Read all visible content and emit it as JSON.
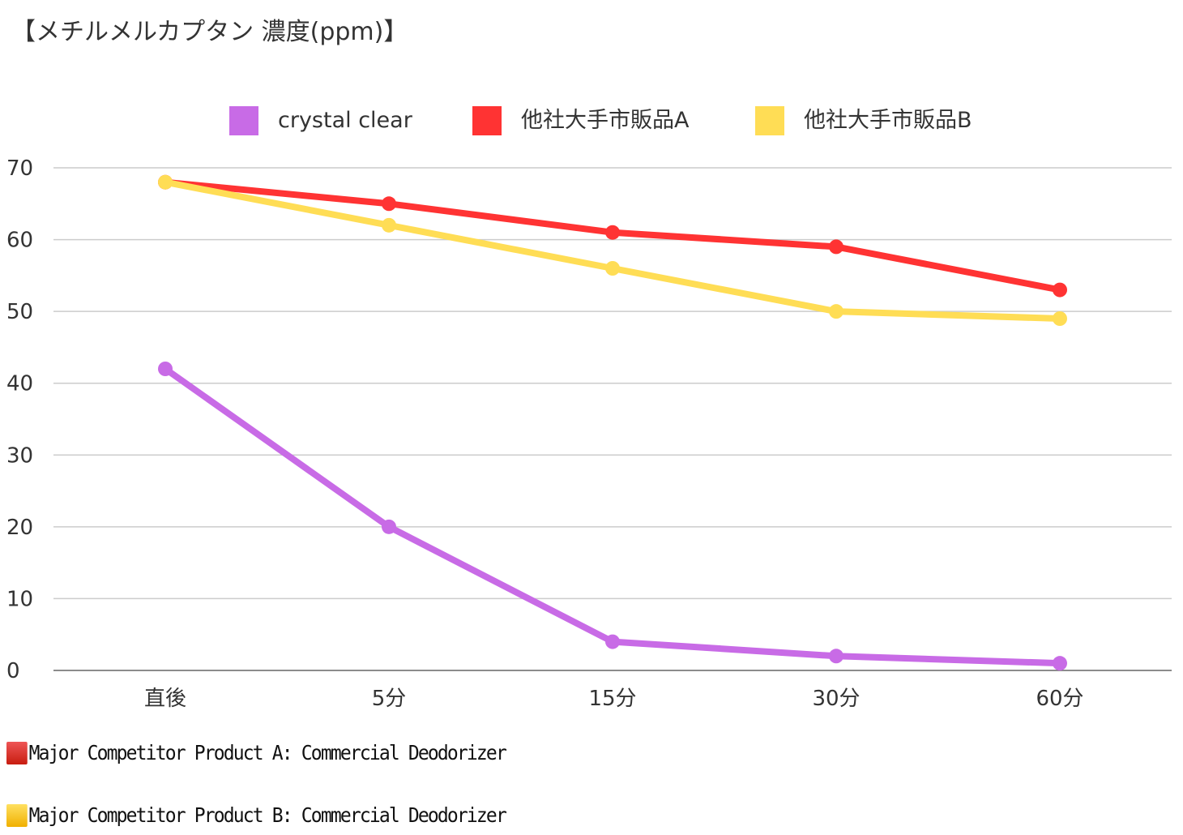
{
  "chart_data": {
    "type": "line",
    "title": "【メチルメルカプタン 濃度(ppm)】",
    "categories": [
      "直後",
      "5分",
      "15分",
      "30分",
      "60分"
    ],
    "ylim": [
      0,
      70
    ],
    "yticks": [
      0,
      10,
      20,
      30,
      40,
      50,
      60,
      70
    ],
    "grid": true,
    "legend_position": "top",
    "series": [
      {
        "name": "crystal clear",
        "color": "#c86be6",
        "values": [
          42,
          20,
          4,
          2,
          1
        ]
      },
      {
        "name": "他社大手市販品A",
        "color": "#ff3333",
        "values": [
          68,
          65,
          61,
          59,
          53
        ]
      },
      {
        "name": "他社大手市販品B",
        "color": "#ffdd55",
        "values": [
          68,
          62,
          56,
          50,
          49
        ]
      }
    ]
  },
  "notes": [
    {
      "text": "Major Competitor Product A: Commercial Deodorizer",
      "color": "#d9281a"
    },
    {
      "text": "Major Competitor Product B: Commercial Deodorizer",
      "color": "#f2b800"
    }
  ]
}
